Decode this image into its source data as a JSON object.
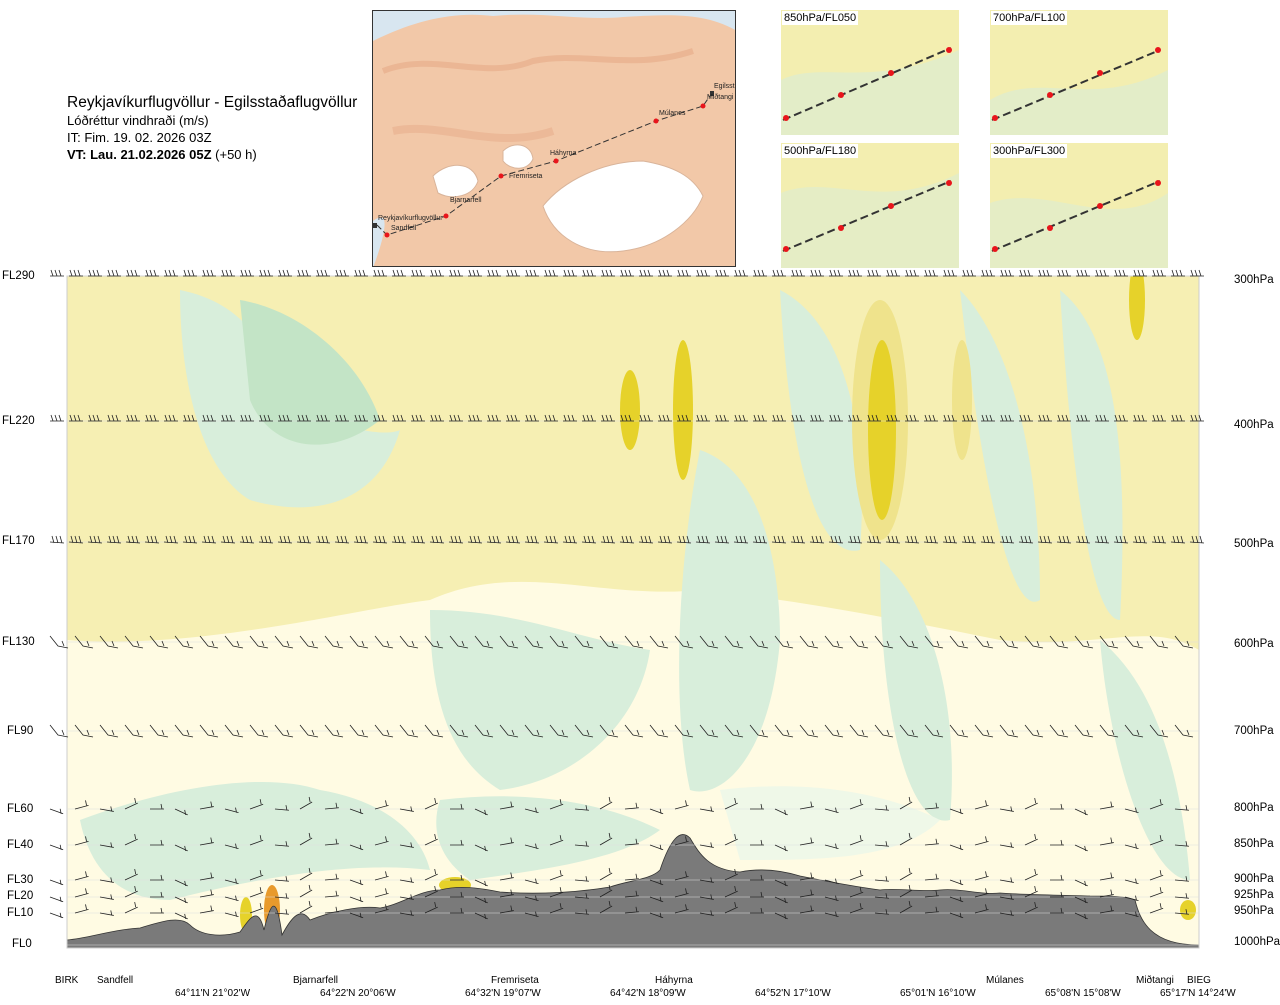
{
  "title": {
    "route": "Reykjavíkurflugvöllur - Egilsstaðaflugvöllur",
    "quantity": "Lóðréttur vindhraði (m/s)",
    "issue_time": "IT: Fim. 19. 02. 2026 03Z",
    "valid_prefix": "VT: Lau. 21.02.2026 05Z",
    "valid_suffix": "(+50 h)"
  },
  "map": {
    "waypoints": [
      "Reykjavíkurflugvöllur",
      "Sandfell",
      "Bjarnarfell",
      "Fremriseta",
      "Háhyrna",
      "Múlanes",
      "Egilsst",
      "Miðtangi"
    ],
    "colors": {
      "land": "#f2c8a8",
      "sea": "#d8e6f0",
      "glacier": "#ffffff",
      "route": "#333333",
      "points": "#e8151b"
    }
  },
  "mini_maps": [
    {
      "label": "850hPa/FL050"
    },
    {
      "label": "700hPa/FL100"
    },
    {
      "label": "500hPa/FL180"
    },
    {
      "label": "300hPa/FL300"
    }
  ],
  "chart_data": {
    "type": "heatmap",
    "title": "Reykjavíkurflugvöllur - Egilsstaðaflugvöllur",
    "subtitle": "Lóðréttur vindhraði (m/s)",
    "y_left_ticks": [
      "FL290",
      "FL220",
      "FL170",
      "FL130",
      "FL90",
      "FL60",
      "FL40",
      "FL30",
      "FL20",
      "FL10",
      "FL0"
    ],
    "y_right_ticks": [
      "300hPa",
      "400hPa",
      "500hPa",
      "600hPa",
      "700hPa",
      "800hPa",
      "850hPa",
      "900hPa",
      "925hPa",
      "950hPa",
      "1000hPa"
    ],
    "pressure_levels_hpa": [
      300,
      400,
      500,
      600,
      700,
      800,
      850,
      900,
      925,
      950,
      1000
    ],
    "x_locations": [
      "BIRK",
      "Sandfell",
      "Bjarnarfell",
      "Fremriseta",
      "Háhyrna",
      "Múlanes",
      "Miðtangi",
      "BIEG"
    ],
    "x_coordinates": [
      "64°11'N 21°02'W",
      "64°22'N 20°06'W",
      "64°32'N 19°07'W",
      "64°42'N 18°09'W",
      "64°52'N 17°10'W",
      "65°01'N 16°10'W",
      "65°08'N 15°08'W",
      "65°17'N 14°24'W"
    ],
    "colors": {
      "strong_up": "#e6d22a",
      "moderate_up": "#efe38c",
      "weak_up": "#f6efb3",
      "neutral": "#fffbe3",
      "weak_down": "#eff8e8",
      "moderate_down": "#d8eedb",
      "strong_down": "#c3e4c6",
      "very_strong_up": "#e89a2c",
      "terrain": "#7a7a7a"
    },
    "wind_barb_levels_hpa": [
      300,
      400,
      500,
      600,
      700,
      800,
      850,
      900,
      925,
      950
    ]
  }
}
